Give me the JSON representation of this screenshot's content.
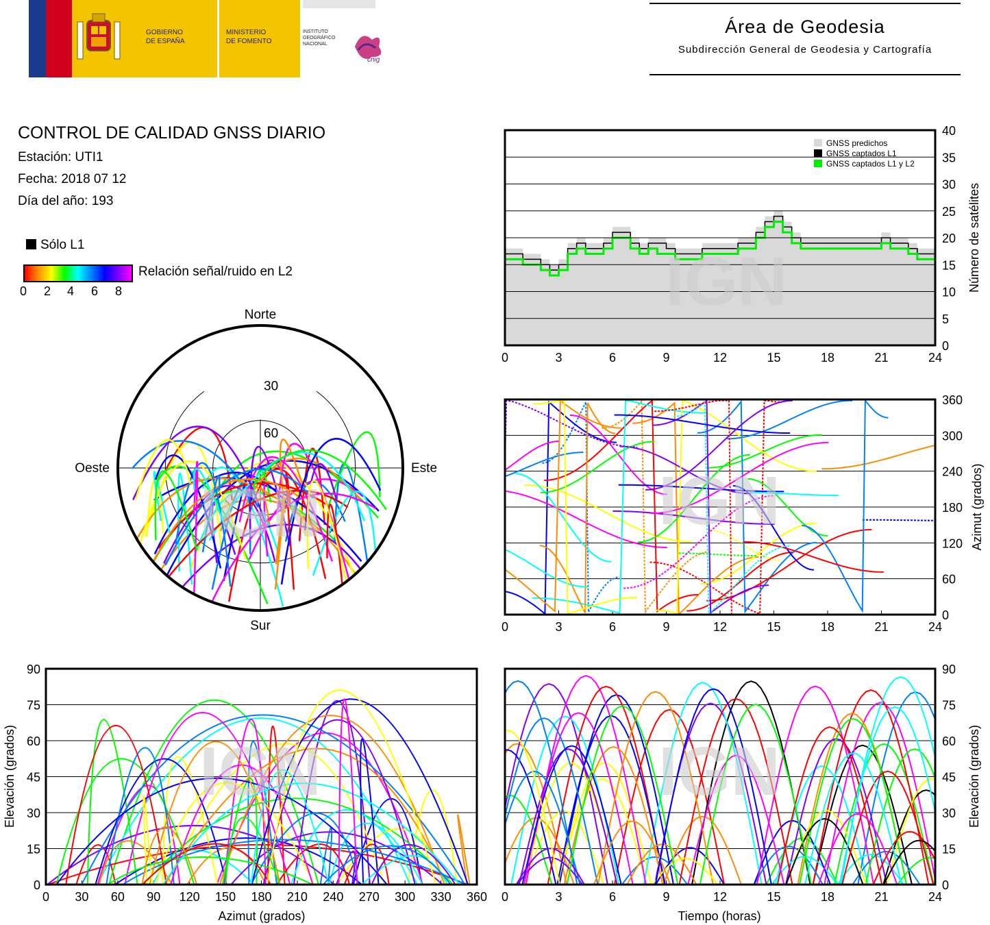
{
  "header": {
    "gov_line1": "GOBIERNO",
    "gov_line2": "DE ESPAÑA",
    "min_line1": "MINISTERIO",
    "min_line2": "DE FOMENTO",
    "inst_line1": "INSTITUTO",
    "inst_line2": "GEOGRÁFICO",
    "inst_line3": "NACIONAL",
    "cnig_label": "cnig",
    "area_title": "Área de Geodesia",
    "area_subtitle": "Subdirección General de Geodesia y Cartografía"
  },
  "info": {
    "title": "CONTROL DE CALIDAD GNSS DIARIO",
    "station": "Estación: UTI1",
    "date": "Fecha: 2018 07 12",
    "doy": "Día del año: 193",
    "legend_l1": "Sólo L1",
    "legend_snr": "Relación señal/ruido en L2",
    "snr_ticks": [
      "0",
      "2",
      "4",
      "6",
      "8"
    ]
  },
  "watermark": "IGN",
  "colors": {
    "predicted": "#d9d9d9",
    "l1": "#000000",
    "l1l2": "#00ee00",
    "snr_gradient": [
      "#ff0000",
      "#ff8c00",
      "#ffff00",
      "#00ff00",
      "#00ffff",
      "#0080ff",
      "#0000ff",
      "#8000ff",
      "#ff00ff"
    ]
  },
  "chart_data": [
    {
      "type": "area",
      "id": "satellite-count",
      "ylabel": "Número de satélites",
      "xlim": [
        0,
        24
      ],
      "ylim": [
        0,
        40
      ],
      "x_ticks": [
        "0",
        "3",
        "6",
        "9",
        "12",
        "15",
        "18",
        "21",
        "24"
      ],
      "y_ticks": [
        "0",
        "5",
        "10",
        "15",
        "20",
        "25",
        "30",
        "35",
        "40"
      ],
      "grid": true,
      "legend_position": "top-right",
      "series": [
        {
          "name": "GNSS predichos",
          "x": [
            0,
            0.5,
            1,
            1.5,
            2,
            2.5,
            3,
            3.5,
            4,
            4.5,
            5,
            5.5,
            6,
            6.5,
            7,
            7.5,
            8,
            8.5,
            9,
            9.5,
            10,
            10.5,
            11,
            11.5,
            12,
            12.5,
            13,
            13.5,
            14,
            14.5,
            15,
            15.5,
            16,
            16.5,
            17,
            17.5,
            18,
            18.5,
            19,
            19.5,
            20,
            20.5,
            21,
            21.5,
            22,
            22.5,
            23,
            23.5,
            24
          ],
          "values": [
            18,
            18,
            17,
            17,
            16,
            15,
            16,
            19,
            20,
            19,
            19,
            20,
            22,
            22,
            20,
            19,
            20,
            20,
            19,
            18,
            18,
            18,
            19,
            19,
            19,
            19,
            20,
            20,
            22,
            24,
            25,
            23,
            21,
            20,
            20,
            20,
            20,
            20,
            20,
            20,
            20,
            20,
            21,
            20,
            20,
            19,
            18,
            18,
            18
          ]
        },
        {
          "name": "GNSS captados L1",
          "x": [
            0,
            0.5,
            1,
            1.5,
            2,
            2.5,
            3,
            3.5,
            4,
            4.5,
            5,
            5.5,
            6,
            6.5,
            7,
            7.5,
            8,
            8.5,
            9,
            9.5,
            10,
            10.5,
            11,
            11.5,
            12,
            12.5,
            13,
            13.5,
            14,
            14.5,
            15,
            15.5,
            16,
            16.5,
            17,
            17.5,
            18,
            18.5,
            19,
            19.5,
            20,
            20.5,
            21,
            21.5,
            22,
            22.5,
            23,
            23.5,
            24
          ],
          "values": [
            17,
            17,
            16,
            16,
            15,
            14,
            15,
            18,
            19,
            18,
            18,
            19,
            21,
            21,
            19,
            18,
            19,
            19,
            18,
            17,
            17,
            17,
            18,
            18,
            18,
            18,
            19,
            19,
            21,
            23,
            24,
            22,
            20,
            19,
            19,
            19,
            19,
            19,
            19,
            19,
            19,
            19,
            20,
            19,
            19,
            18,
            17,
            17,
            17
          ]
        },
        {
          "name": "GNSS captados L1 y L2",
          "x": [
            0,
            0.5,
            1,
            1.5,
            2,
            2.5,
            3,
            3.5,
            4,
            4.5,
            5,
            5.5,
            6,
            6.5,
            7,
            7.5,
            8,
            8.5,
            9,
            9.5,
            10,
            10.5,
            11,
            11.5,
            12,
            12.5,
            13,
            13.5,
            14,
            14.5,
            15,
            15.5,
            16,
            16.5,
            17,
            17.5,
            18,
            18.5,
            19,
            19.5,
            20,
            20.5,
            21,
            21.5,
            22,
            22.5,
            23,
            23.5,
            24
          ],
          "values": [
            16,
            16,
            15,
            15,
            14,
            13,
            14,
            17,
            18,
            17,
            17,
            18,
            20,
            20,
            18,
            17,
            18,
            17,
            17,
            16,
            16,
            16,
            17,
            17,
            17,
            17,
            18,
            18,
            20,
            22,
            23,
            21,
            19,
            18,
            18,
            18,
            18,
            18,
            18,
            18,
            18,
            18,
            19,
            18,
            18,
            17,
            16,
            16,
            16
          ]
        }
      ]
    },
    {
      "type": "scatter",
      "id": "azimuth-vs-time",
      "ylabel": "Azimut (grados)",
      "xlim": [
        0,
        24
      ],
      "ylim": [
        0,
        360
      ],
      "x_ticks": [
        "0",
        "3",
        "6",
        "9",
        "12",
        "15",
        "18",
        "21",
        "24"
      ],
      "y_ticks": [
        "0",
        "60",
        "120",
        "180",
        "240",
        "300",
        "360"
      ],
      "grid": true
    },
    {
      "type": "scatter",
      "id": "skyplot",
      "labels": {
        "north": "Norte",
        "south": "Sur",
        "west": "Oeste",
        "east": "Este"
      },
      "ring_labels": [
        "30",
        "60"
      ]
    },
    {
      "type": "scatter",
      "id": "elevation-vs-azimuth",
      "xlabel": "Azimut (grados)",
      "ylabel": "Elevación (grados)",
      "xlim": [
        0,
        360
      ],
      "ylim": [
        0,
        90
      ],
      "x_ticks": [
        "0",
        "30",
        "60",
        "90",
        "120",
        "150",
        "180",
        "210",
        "240",
        "270",
        "300",
        "330",
        "360"
      ],
      "y_ticks": [
        "0",
        "15",
        "30",
        "45",
        "60",
        "75",
        "90"
      ],
      "grid": true
    },
    {
      "type": "scatter",
      "id": "elevation-vs-time",
      "xlabel": "Tiempo (horas)",
      "ylabel": "Elevación (grados)",
      "xlim": [
        0,
        24
      ],
      "ylim": [
        0,
        90
      ],
      "x_ticks": [
        "0",
        "3",
        "6",
        "9",
        "12",
        "15",
        "18",
        "21",
        "24"
      ],
      "y_ticks": [
        "0",
        "15",
        "30",
        "45",
        "60",
        "75",
        "90"
      ],
      "grid": true
    }
  ]
}
